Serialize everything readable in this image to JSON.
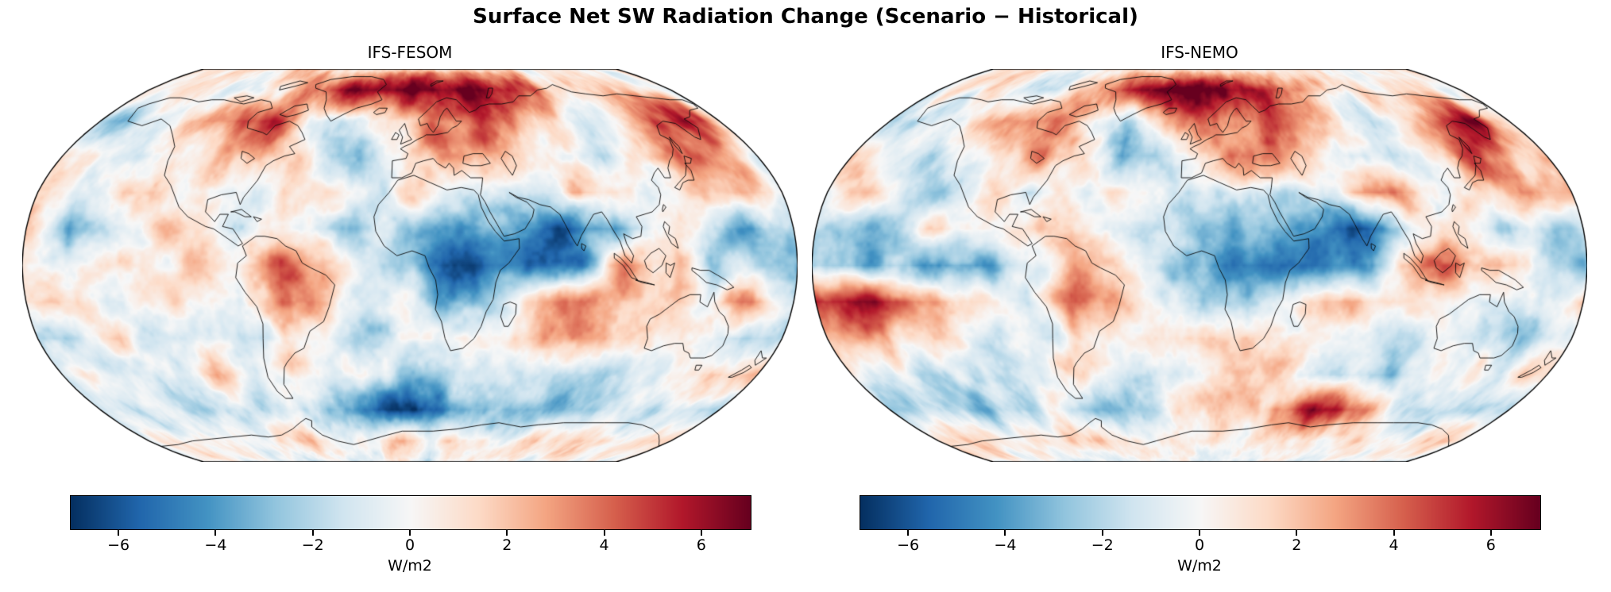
{
  "figure": {
    "title": "Surface Net SW Radiation Change (Scenario − Historical)",
    "background_color": "#ffffff"
  },
  "colormap_anchors": [
    "#053061",
    "#2166ac",
    "#4393c3",
    "#92c5de",
    "#d1e5f0",
    "#f7f7f7",
    "#fddbc7",
    "#f4a582",
    "#d6604d",
    "#b2182b",
    "#67001f"
  ],
  "chart_data": [
    {
      "type": "heatmap",
      "title": "IFS-FESOM",
      "projection": "robinson",
      "units": "W/m2",
      "vmin": -7,
      "vmax": 7,
      "colormap": "RdBu_r",
      "colorbar": {
        "label": "W/m2",
        "ticks": [
          -6,
          -4,
          -2,
          0,
          2,
          4,
          6
        ],
        "tick_labels": [
          "−6",
          "−4",
          "−2",
          "0",
          "2",
          "4",
          "6"
        ],
        "orientation": "horizontal"
      },
      "grid": {
        "lons": [
          -180,
          -160,
          -140,
          -120,
          -100,
          -80,
          -60,
          -40,
          -20,
          0,
          20,
          40,
          60,
          80,
          100,
          120,
          140,
          160,
          180
        ],
        "lats": [
          90,
          75,
          60,
          45,
          30,
          15,
          0,
          -15,
          -30,
          -45,
          -60,
          -75,
          -90
        ],
        "values_wm2": [
          [
            0.8,
            0.8,
            0.8,
            0.8,
            0.8,
            0.8,
            0.8,
            0.8,
            0.8,
            0.8,
            0.8,
            0.8,
            0.8,
            0.8,
            0.8,
            0.8,
            0.8,
            0.8,
            0.8
          ],
          [
            -0.5,
            0.5,
            0.5,
            -1,
            -1,
            2,
            4,
            6.5,
            7,
            7,
            7,
            6.5,
            5,
            4,
            2,
            1,
            1,
            0.5,
            -0.5
          ],
          [
            -2,
            -2.5,
            -1,
            3,
            5,
            5.5,
            1,
            -1.5,
            0.5,
            2,
            3.5,
            4.5,
            3.5,
            1,
            -1,
            0.5,
            4,
            6.5,
            1.5
          ],
          [
            2.5,
            0.5,
            -2,
            0.5,
            1.5,
            3,
            1.5,
            -2.5,
            -1,
            2.5,
            3.5,
            3,
            1,
            0,
            -0.5,
            1.5,
            4.5,
            3.5,
            -0.5
          ],
          [
            2,
            -1.5,
            1,
            2,
            -0.5,
            -1,
            0.5,
            0.5,
            -0.5,
            1,
            0.5,
            -0.5,
            -1,
            3,
            2,
            -1,
            1,
            2.5,
            1
          ],
          [
            2.5,
            -3.5,
            -0.5,
            1.5,
            1,
            -0.5,
            0.5,
            -1,
            -2,
            -2,
            -3,
            -3.5,
            -5,
            -6,
            -2,
            0.5,
            -2,
            -4,
            -2.5
          ],
          [
            -0.5,
            -1,
            0.5,
            1.5,
            1.5,
            0.5,
            3.5,
            2.5,
            -1,
            -3,
            -5.5,
            -5,
            -4,
            -3.5,
            4.5,
            1.5,
            -1.5,
            -2.5,
            -3.5
          ],
          [
            1.5,
            0.5,
            -1,
            -0.5,
            0.5,
            -1,
            4.5,
            2,
            -0.5,
            -1.5,
            -3,
            -2,
            1.5,
            2.5,
            1,
            1.5,
            0.5,
            3,
            -2.5
          ],
          [
            -2,
            -2.5,
            1.5,
            -1.5,
            -1,
            -1.5,
            1,
            -1,
            -1.5,
            -0.5,
            0.5,
            -1,
            2.5,
            2.5,
            1.5,
            -0.5,
            -0.5,
            -2.5,
            -1
          ],
          [
            0.5,
            -0.5,
            -1.5,
            -0.5,
            1,
            -0.5,
            0.5,
            -2,
            -1,
            -2.5,
            -2,
            -1.5,
            -0.5,
            -1.5,
            -2.5,
            -1,
            -0.5,
            2.5,
            2
          ],
          [
            -1.5,
            -2,
            -1.5,
            -2.5,
            -2,
            -1,
            -1.5,
            -4,
            -5.5,
            -6,
            -4.5,
            -3.5,
            -3,
            -3.5,
            -3,
            -2,
            -2.5,
            -2,
            -2.5
          ],
          [
            -0.5,
            0.5,
            0,
            -0.5,
            0.5,
            1,
            1.5,
            0.5,
            1,
            1.5,
            0.5,
            1,
            0.5,
            0.5,
            1,
            1.5,
            0.5,
            1,
            0.5
          ],
          [
            -0.3,
            -0.3,
            -0.3,
            -0.3,
            -0.3,
            -0.3,
            -0.3,
            -0.3,
            -0.3,
            -0.3,
            -0.3,
            -0.3,
            -0.3,
            -0.3,
            -0.3,
            -0.3,
            -0.3,
            -0.3,
            -0.3
          ]
        ]
      }
    },
    {
      "type": "heatmap",
      "title": "IFS-NEMO",
      "projection": "robinson",
      "units": "W/m2",
      "vmin": -7,
      "vmax": 7,
      "colormap": "RdBu_r",
      "colorbar": {
        "label": "W/m2",
        "ticks": [
          -6,
          -4,
          -2,
          0,
          2,
          4,
          6
        ],
        "tick_labels": [
          "−6",
          "−4",
          "−2",
          "0",
          "2",
          "4",
          "6"
        ],
        "orientation": "horizontal"
      },
      "grid": {
        "lons": [
          -180,
          -160,
          -140,
          -120,
          -100,
          -80,
          -60,
          -40,
          -20,
          0,
          20,
          40,
          60,
          80,
          100,
          120,
          140,
          160,
          180
        ],
        "lats": [
          90,
          75,
          60,
          45,
          30,
          15,
          0,
          -15,
          -30,
          -45,
          -60,
          -75,
          -90
        ],
        "values_wm2": [
          [
            0.6,
            0.6,
            0.6,
            0.6,
            0.6,
            0.6,
            0.6,
            0.6,
            0.6,
            0.6,
            0.6,
            0.6,
            0.6,
            0.6,
            0.6,
            0.6,
            0.6,
            0.6,
            0.6
          ],
          [
            -0.5,
            0.5,
            0,
            -1,
            -0.5,
            1.5,
            3,
            6.5,
            7,
            7,
            6.5,
            5.5,
            4,
            2.5,
            1.5,
            1,
            0.5,
            0.5,
            -0.5
          ],
          [
            -2,
            -2.5,
            -1.5,
            2,
            4.5,
            3.5,
            0.5,
            -1,
            2.5,
            4.5,
            3.5,
            4,
            2.5,
            0.5,
            -1.5,
            0.5,
            3.5,
            6.5,
            1
          ],
          [
            1.5,
            -1,
            -2,
            -0.5,
            2,
            3.5,
            1.5,
            -3.5,
            -1.5,
            2.5,
            3.5,
            3,
            1,
            -0.5,
            -1,
            1.5,
            4,
            2.5,
            1.5
          ],
          [
            1,
            0.5,
            -1.5,
            -1.5,
            0.5,
            -0.5,
            0.5,
            0.5,
            -0.5,
            -1,
            0.5,
            -0.5,
            -1.5,
            4.5,
            2.5,
            -0.5,
            1,
            2.5,
            2
          ],
          [
            -1.5,
            -2,
            -1,
            1,
            1.5,
            1,
            0.5,
            -1.5,
            -2,
            -2.5,
            -3,
            -4,
            -5.5,
            -6,
            -1,
            2,
            -1.5,
            -2.5,
            -2
          ],
          [
            -3,
            -2.5,
            -3.5,
            -4,
            -3.5,
            -2,
            2.5,
            1.5,
            -1.5,
            -3,
            -5.5,
            -5,
            -4.5,
            -4,
            2.5,
            4.5,
            1.5,
            -1.5,
            -2.5
          ],
          [
            6,
            6.5,
            4.5,
            2,
            0.5,
            -1.5,
            4,
            1.5,
            -1,
            -1.5,
            -2.5,
            -1.5,
            2,
            2.5,
            2,
            0.5,
            -1,
            -2,
            2
          ],
          [
            2,
            2.5,
            1.5,
            0.5,
            -1.5,
            -1,
            1,
            -0.5,
            1.5,
            1.5,
            2,
            1.5,
            0.5,
            -0.5,
            -1.5,
            -1,
            -0.5,
            -1.5,
            -0.5
          ],
          [
            0.5,
            -1.5,
            -2,
            -1,
            -0.5,
            -0.5,
            0.5,
            -1.5,
            -0.5,
            -1,
            1.5,
            1.5,
            -1,
            -2,
            -2.5,
            -1.5,
            -1,
            0.5,
            1
          ],
          [
            -2,
            -1.5,
            -2,
            -2.5,
            -1.5,
            -1,
            -2,
            -2.5,
            -1,
            1,
            1.5,
            2.5,
            6,
            6,
            2,
            -2.5,
            -1.5,
            -2,
            -2.5
          ],
          [
            0.5,
            0.5,
            0,
            0.5,
            1,
            1.5,
            2,
            0.5,
            0.5,
            1,
            0.5,
            0.5,
            0.5,
            0.5,
            1,
            0.5,
            0.5,
            1,
            0.5
          ],
          [
            -0.3,
            -0.3,
            -0.3,
            -0.3,
            -0.3,
            -0.3,
            -0.3,
            -0.3,
            -0.3,
            -0.3,
            -0.3,
            -0.3,
            -0.3,
            -0.3,
            -0.3,
            -0.3,
            -0.3,
            -0.3,
            -0.3
          ]
        ]
      }
    }
  ]
}
